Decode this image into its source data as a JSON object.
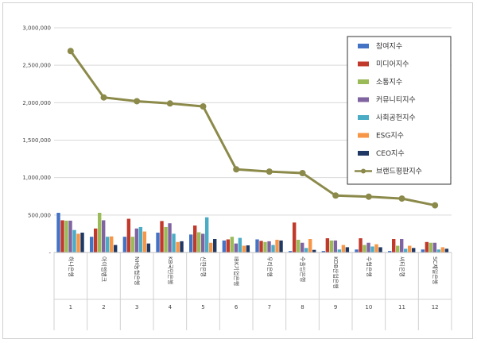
{
  "chart_data": {
    "type": "bar",
    "title": "",
    "xlabel": "",
    "ylabel": "",
    "ylim": [
      0,
      3000000
    ],
    "yticks": [
      0,
      500000,
      1000000,
      1500000,
      2000000,
      2500000,
      3000000
    ],
    "ytick_labels": [
      "-",
      "500,000",
      "1,000,000",
      "1,500,000",
      "2,000,000",
      "2,500,000",
      "3,000,000"
    ],
    "categories": [
      "하나은행",
      "아이엠뱅크",
      "NH농협은행",
      "KB국민은행",
      "신한은행",
      "IBK기업은행",
      "우리은행",
      "수출입은행",
      "KDB산업은행",
      "수협은행",
      "씨티은행",
      "SC제일은행"
    ],
    "ranks": [
      "1",
      "2",
      "3",
      "4",
      "5",
      "6",
      "7",
      "8",
      "9",
      "10",
      "11",
      "12"
    ],
    "grid": true,
    "legend_position": "top-right",
    "series": [
      {
        "name": "참여지수",
        "color": "#4472c4",
        "kind": "bar",
        "values": [
          530000,
          210000,
          210000,
          265000,
          240000,
          160000,
          175000,
          20000,
          20000,
          40000,
          20000,
          40000
        ]
      },
      {
        "name": "미디어지수",
        "color": "#c0392b",
        "kind": "bar",
        "values": [
          430000,
          320000,
          450000,
          420000,
          360000,
          175000,
          155000,
          400000,
          190000,
          190000,
          180000,
          140000
        ]
      },
      {
        "name": "소통지수",
        "color": "#9bbb59",
        "kind": "bar",
        "values": [
          425000,
          530000,
          210000,
          340000,
          270000,
          210000,
          140000,
          170000,
          160000,
          100000,
          90000,
          130000
        ]
      },
      {
        "name": "커뮤니티지수",
        "color": "#8064a2",
        "kind": "bar",
        "values": [
          425000,
          430000,
          320000,
          390000,
          250000,
          120000,
          150000,
          130000,
          160000,
          130000,
          180000,
          130000
        ]
      },
      {
        "name": "사회공헌지수",
        "color": "#4bacc6",
        "kind": "bar",
        "values": [
          300000,
          210000,
          340000,
          250000,
          470000,
          195000,
          100000,
          60000,
          40000,
          80000,
          50000,
          40000
        ]
      },
      {
        "name": "ESG지수",
        "color": "#f79646",
        "kind": "bar",
        "values": [
          250000,
          215000,
          280000,
          140000,
          130000,
          90000,
          170000,
          180000,
          100000,
          110000,
          90000,
          70000
        ]
      },
      {
        "name": "CEO지수",
        "color": "#1f3864",
        "kind": "bar",
        "values": [
          265000,
          100000,
          120000,
          150000,
          180000,
          95000,
          160000,
          35000,
          70000,
          70000,
          60000,
          50000
        ]
      },
      {
        "name": "브랜드평판지수",
        "color": "#8c8a4a",
        "kind": "line",
        "values": [
          2690000,
          2070000,
          2020000,
          1990000,
          1950000,
          1110000,
          1080000,
          1060000,
          760000,
          745000,
          720000,
          630000
        ]
      }
    ]
  }
}
